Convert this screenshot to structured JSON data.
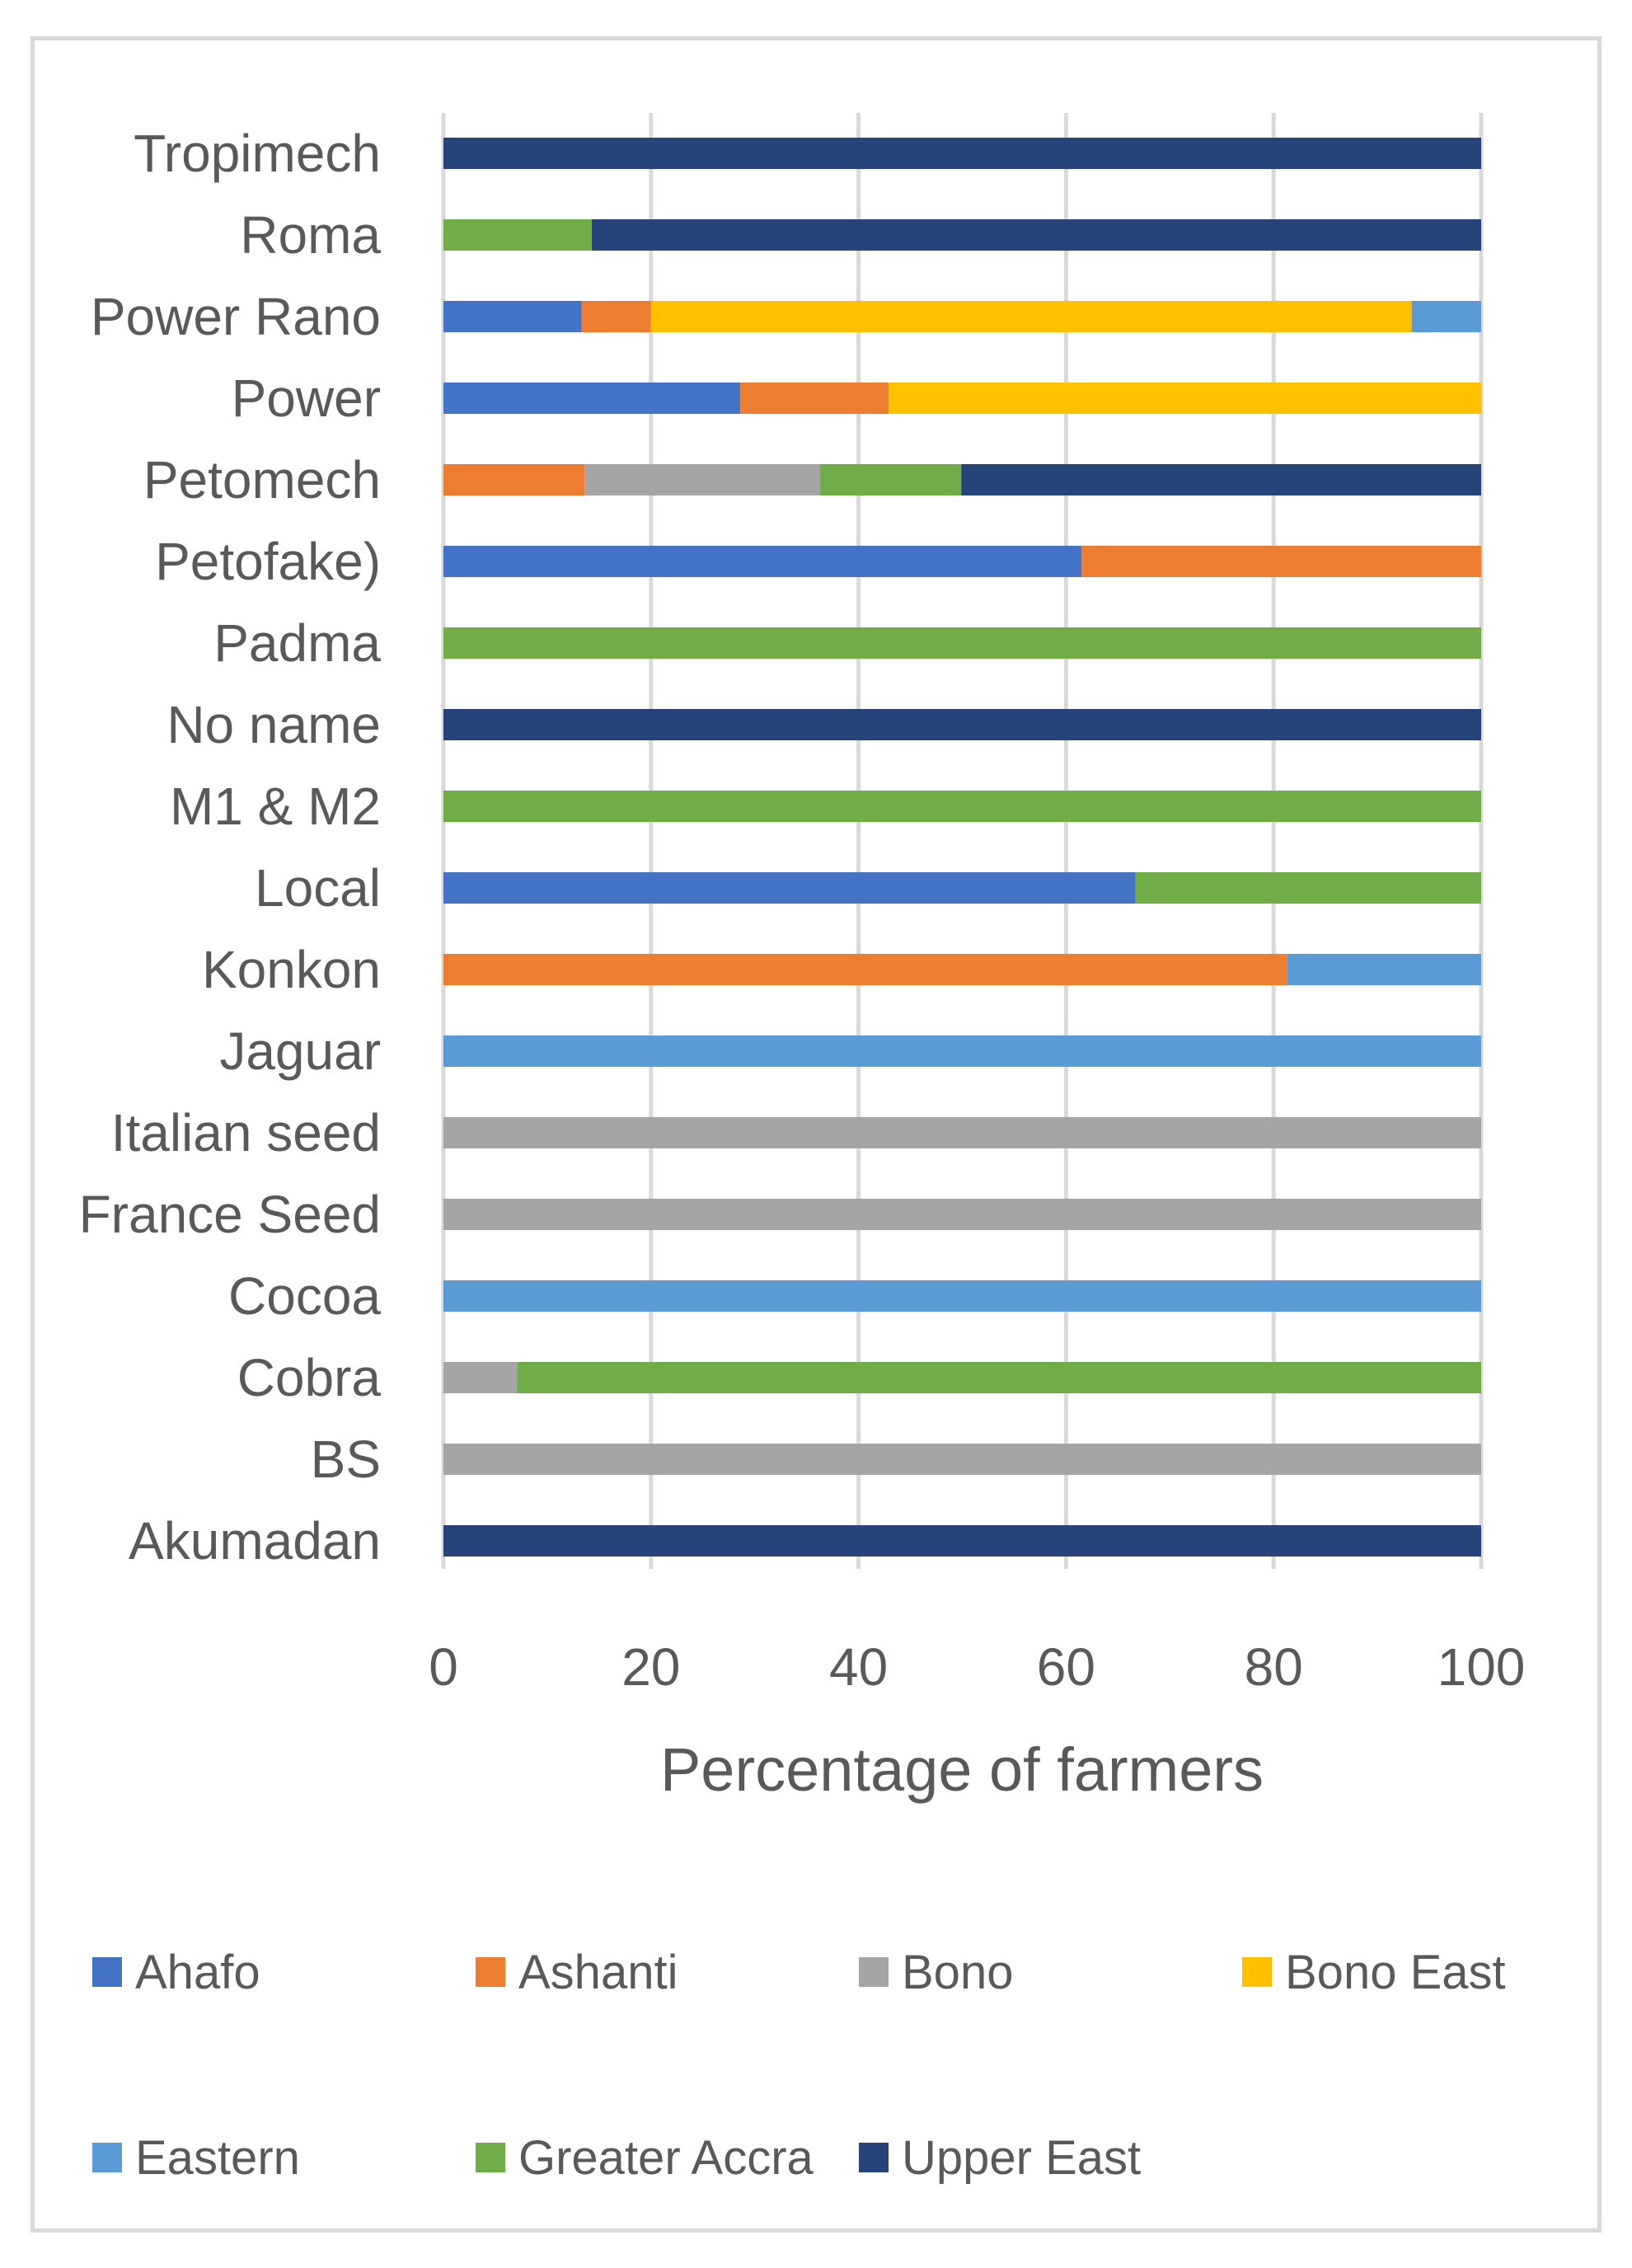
{
  "chart_data": {
    "type": "bar",
    "orientation": "horizontal",
    "stacked": true,
    "title": "",
    "xlabel": "Percentage of farmers",
    "ylabel": "",
    "xlim": [
      0,
      100
    ],
    "xticks": [
      0,
      20,
      40,
      60,
      80,
      100
    ],
    "grid": true,
    "legend_position": "bottom",
    "categories": [
      "Tropimech",
      "Roma",
      "Power Rano",
      "Power",
      "Petomech",
      "Petofake)",
      "Padma",
      "No name",
      "M1 & M2",
      "Local",
      "Konkon",
      "Jaguar",
      "Italian seed",
      "France Seed",
      "Cocoa",
      "Cobra",
      "BS",
      "Akumadan"
    ],
    "series": [
      {
        "name": "Ahafo",
        "color": "#4472c4",
        "values": [
          0,
          0,
          13.3,
          28.6,
          0,
          61.5,
          0,
          0,
          0,
          66.7,
          0,
          0,
          0,
          0,
          0,
          0,
          0,
          0
        ]
      },
      {
        "name": "Ashanti",
        "color": "#ed7d31",
        "values": [
          0,
          0,
          6.7,
          14.3,
          13.6,
          38.5,
          0,
          0,
          0,
          0,
          81.3,
          0,
          0,
          0,
          0,
          0,
          0,
          0
        ]
      },
      {
        "name": "Bono",
        "color": "#a5a5a5",
        "values": [
          0,
          0,
          0,
          0,
          22.7,
          0,
          0,
          0,
          0,
          0,
          0,
          0,
          100,
          100,
          0,
          7.1,
          100,
          0
        ]
      },
      {
        "name": "Bono East",
        "color": "#ffc000",
        "values": [
          0,
          0,
          73.3,
          57.1,
          0,
          0,
          0,
          0,
          0,
          0,
          0,
          0,
          0,
          0,
          0,
          0,
          0,
          0
        ]
      },
      {
        "name": "Eastern",
        "color": "#5b9bd5",
        "values": [
          0,
          0,
          6.7,
          0,
          0,
          0,
          0,
          0,
          0,
          0,
          18.7,
          100,
          0,
          0,
          100,
          0,
          0,
          0
        ]
      },
      {
        "name": "Greater Accra",
        "color": "#70ad47",
        "values": [
          0,
          14.3,
          0,
          0,
          13.6,
          0,
          100,
          0,
          100,
          33.3,
          0,
          0,
          0,
          0,
          0,
          92.9,
          0,
          0
        ]
      },
      {
        "name": "Upper East",
        "color": "#264478",
        "values": [
          100,
          85.7,
          0,
          0,
          50.1,
          0,
          0,
          100,
          0,
          0,
          0,
          0,
          0,
          0,
          0,
          0,
          0,
          100
        ]
      }
    ]
  }
}
